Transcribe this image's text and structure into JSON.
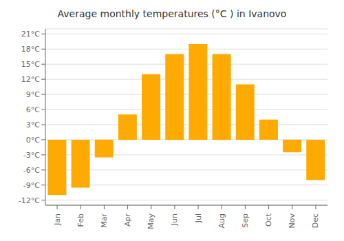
{
  "chart_data": {
    "type": "bar",
    "title": "Average monthly temperatures (°C ) in Ivanovo",
    "categories": [
      "Jan",
      "Feb",
      "Mar",
      "Apr",
      "May",
      "Jun",
      "Jul",
      "Aug",
      "Sep",
      "Oct",
      "Nov",
      "Dec"
    ],
    "values": [
      -11,
      -9.5,
      -3.5,
      5,
      13,
      17,
      19,
      17,
      11,
      4,
      -2.5,
      -8
    ],
    "color": "#FFAA00",
    "ylim": [
      -13,
      22
    ],
    "yticks": [
      {
        "value": -12,
        "label": "-12°C"
      },
      {
        "value": -9,
        "label": "-9°C"
      },
      {
        "value": -6,
        "label": "-6°C"
      },
      {
        "value": -3,
        "label": "-3°C"
      },
      {
        "value": 0,
        "label": "0°C"
      },
      {
        "value": 3,
        "label": "3°C"
      },
      {
        "value": 6,
        "label": "6°C"
      },
      {
        "value": 9,
        "label": "9°C"
      },
      {
        "value": 12,
        "label": "12°C"
      },
      {
        "value": 15,
        "label": "15°C"
      },
      {
        "value": 18,
        "label": "18°C"
      },
      {
        "value": 21,
        "label": "21°C"
      }
    ],
    "grid": true
  }
}
